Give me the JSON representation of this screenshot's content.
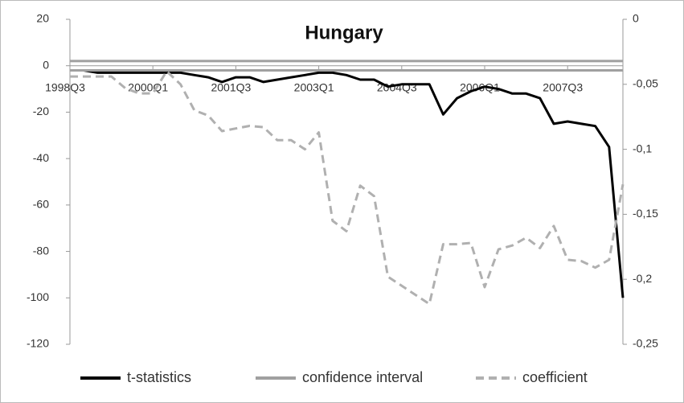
{
  "chart_data": {
    "type": "line",
    "title": "Hungary",
    "categories": [
      "1998Q3",
      null,
      null,
      null,
      null,
      null,
      "2000Q1",
      null,
      null,
      null,
      null,
      null,
      "2001Q3",
      null,
      null,
      null,
      null,
      null,
      "2003Q1",
      null,
      null,
      null,
      null,
      null,
      "2004Q3",
      null,
      null,
      null,
      null,
      null,
      "2006Q1",
      null,
      null,
      null,
      null,
      null,
      "2007Q3",
      null,
      null,
      null,
      null
    ],
    "ylim": [
      -120,
      20
    ],
    "yticks": [
      20,
      0,
      -20,
      -40,
      -60,
      -80,
      -100,
      -120
    ],
    "y2lim": [
      -0.25,
      0
    ],
    "y2ticks": [
      0,
      {
        "value": -0.05,
        "label": "-0,05"
      },
      {
        "value": -0.1,
        "label": "-0,1"
      },
      {
        "value": -0.15,
        "label": "-0,15"
      },
      {
        "value": -0.2,
        "label": "-0,2"
      },
      {
        "value": -0.25,
        "label": "-0,25"
      }
    ],
    "series": [
      {
        "name": "t-statistics",
        "color": "#000000",
        "dash": false,
        "values": [
          -2,
          -2,
          -3,
          -3,
          -3,
          -3,
          -3,
          -3,
          -3,
          -4,
          -5,
          -7,
          -5,
          -5,
          -7,
          -6,
          -5,
          -4,
          -3,
          -3,
          -4,
          -6,
          -6,
          -9,
          -8,
          -8,
          -8,
          -21,
          -14,
          -11,
          -9,
          -10,
          -12,
          -12,
          -14,
          -25,
          -24,
          -25,
          -26,
          -35,
          -100
        ]
      },
      {
        "name": "confidence interval",
        "color": "#a0a0a0",
        "dash": false,
        "values": [
          2,
          2,
          2,
          2,
          2,
          2,
          2,
          2,
          2,
          2,
          2,
          2,
          2,
          2,
          2,
          2,
          2,
          2,
          2,
          2,
          2,
          2,
          2,
          2,
          2,
          2,
          2,
          2,
          2,
          2,
          2,
          2,
          2,
          2,
          2,
          2,
          2,
          2,
          2,
          2,
          2
        ],
        "lower": [
          -2,
          -2,
          -2,
          -2,
          -2,
          -2,
          -2,
          -2,
          -2,
          -2,
          -2,
          -2,
          -2,
          -2,
          -2,
          -2,
          -2,
          -2,
          -2,
          -2,
          -2,
          -2,
          -2,
          -2,
          -2,
          -2,
          -2,
          -2,
          -2,
          -2,
          -2,
          -2,
          -2,
          -2,
          -2,
          -2,
          -2,
          -2,
          -2,
          -2,
          -2
        ]
      },
      {
        "name": "coefficient",
        "color": "#b0b0b0",
        "dash": true,
        "axis": "y2",
        "values": [
          -0.044,
          -0.044,
          -0.044,
          -0.044,
          -0.053,
          -0.057,
          -0.057,
          -0.04,
          -0.05,
          -0.07,
          -0.074,
          -0.086,
          -0.084,
          -0.082,
          -0.083,
          -0.093,
          -0.093,
          -0.1,
          -0.087,
          -0.155,
          -0.163,
          -0.128,
          -0.136,
          -0.198,
          -0.205,
          -0.212,
          -0.219,
          -0.173,
          -0.173,
          -0.172,
          -0.206,
          -0.177,
          -0.174,
          -0.168,
          -0.176,
          -0.159,
          -0.185,
          -0.186,
          -0.191,
          -0.185,
          -0.127
        ]
      }
    ]
  }
}
